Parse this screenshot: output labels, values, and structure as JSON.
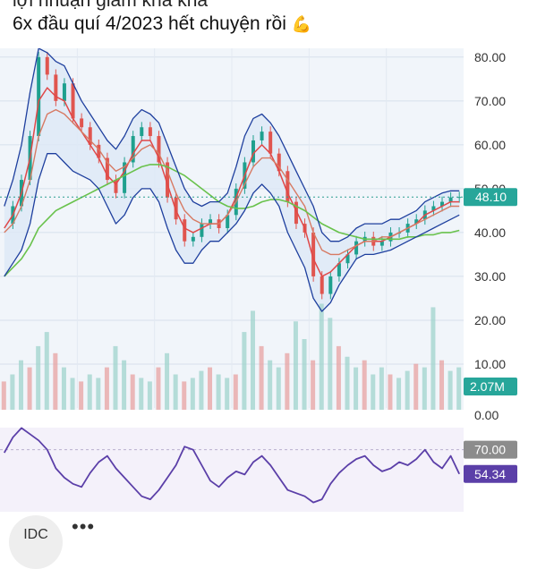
{
  "post": {
    "line1": "lợi nhuận giảm khá khá",
    "line2": "6x đầu quí 4/2023 hết chuyện rồi",
    "emoji": "💪"
  },
  "footer": {
    "author_initials": "IDC",
    "more_label": "•••"
  },
  "colors": {
    "bollinger": "#1e3f9e",
    "fast_ma": "#e04848",
    "mid_ma": "#d77a63",
    "slow_ma": "#69c24c",
    "band_fill": "#dde8f6",
    "price_badge": "#27a69a",
    "rsi_line": "#5b3fa8",
    "rsi_badge_70": "#8c8c8c"
  },
  "chart_data": [
    {
      "type": "line",
      "panel": "price",
      "y_ticks": [
        "80.00",
        "70.00",
        "60.00",
        "50.00",
        "40.00",
        "30.00",
        "20.00",
        "10.00"
      ],
      "ylim": [
        0,
        82
      ],
      "grid": true,
      "current_price": "48.10",
      "current_price_value": 48.1,
      "close_series": [
        42,
        46,
        52,
        62,
        80,
        76,
        70,
        74,
        66,
        64,
        60,
        57,
        52,
        49,
        56,
        62,
        64,
        62,
        56,
        48,
        43,
        38,
        39,
        42,
        43,
        41,
        44,
        50,
        56,
        61,
        63,
        58,
        54,
        47,
        42,
        40,
        30,
        26,
        30,
        33,
        35,
        38,
        39,
        37,
        38,
        40,
        40,
        42,
        43,
        45,
        46,
        47,
        48,
        48.1
      ],
      "series": [
        {
          "role": "fast_ma",
          "values": [
            41,
            44,
            49,
            57,
            70,
            73,
            71,
            70,
            66,
            63,
            60,
            57,
            53,
            51,
            54,
            58,
            61,
            61,
            57,
            51,
            45,
            41,
            40,
            41,
            42,
            42,
            44,
            48,
            53,
            58,
            60,
            58,
            54,
            49,
            45,
            41,
            34,
            30,
            31,
            33,
            35,
            37,
            38,
            38,
            38,
            39,
            40,
            41,
            42,
            44,
            45,
            46,
            47,
            47
          ]
        },
        {
          "role": "mid_ma",
          "values": [
            40,
            42,
            46,
            52,
            62,
            67,
            68,
            67,
            65,
            63,
            61,
            59,
            56,
            54,
            55,
            57,
            59,
            60,
            58,
            54,
            49,
            45,
            43,
            42,
            42,
            42,
            44,
            47,
            51,
            55,
            57,
            57,
            55,
            52,
            49,
            46,
            40,
            36,
            35,
            35,
            36,
            37,
            38,
            38,
            39,
            39,
            40,
            41,
            42,
            43,
            44,
            45,
            46,
            46
          ]
        },
        {
          "role": "slow_ma",
          "values": [
            30,
            32,
            34,
            37,
            41,
            43,
            45,
            46,
            47,
            48,
            49,
            50,
            51,
            52,
            53,
            54,
            55,
            55.5,
            55.5,
            55,
            54,
            53,
            51.5,
            50,
            48.5,
            47,
            46,
            45.5,
            45.5,
            46,
            47,
            47.5,
            47.5,
            47,
            46,
            45,
            43.5,
            42,
            41,
            40,
            39.5,
            39,
            38.5,
            38.5,
            38.5,
            38.5,
            38.5,
            39,
            39,
            39.5,
            39.5,
            40,
            40,
            40.5
          ]
        },
        {
          "role": "bollinger_upper",
          "values": [
            46,
            52,
            60,
            72,
            82,
            81,
            79,
            78,
            74,
            70,
            67,
            64,
            61,
            59,
            62,
            66,
            68,
            67,
            65,
            60,
            55,
            50,
            47,
            46,
            47,
            47,
            49,
            55,
            62,
            66,
            67,
            65,
            62,
            58,
            54,
            50,
            46,
            40,
            38,
            38,
            39,
            41,
            42,
            42,
            42,
            43,
            43,
            44,
            45,
            47,
            48,
            49,
            49.5,
            49.5
          ]
        },
        {
          "role": "bollinger_lower",
          "values": [
            30,
            33,
            36,
            42,
            52,
            58,
            58,
            56,
            54,
            53,
            52,
            50,
            46,
            42,
            44,
            48,
            50,
            50,
            47,
            41,
            36,
            33,
            33,
            36,
            38,
            38,
            40,
            42,
            45,
            49,
            51,
            49,
            46,
            40,
            36,
            32,
            25,
            22,
            24,
            28,
            31,
            34,
            35,
            35,
            35.5,
            36,
            37,
            38,
            39,
            40,
            41,
            42,
            43,
            44
          ]
        }
      ]
    },
    {
      "type": "bar",
      "panel": "volume",
      "current_volume": "2.07M",
      "zero_label": "0.00",
      "values": [
        8,
        10,
        14,
        12,
        18,
        22,
        16,
        12,
        9,
        8,
        10,
        9,
        12,
        18,
        14,
        10,
        9,
        8,
        12,
        16,
        10,
        8,
        9,
        11,
        12,
        10,
        9,
        10,
        22,
        28,
        18,
        14,
        12,
        16,
        25,
        20,
        14,
        30,
        26,
        18,
        15,
        12,
        14,
        10,
        12,
        10,
        9,
        11,
        13,
        12,
        29,
        14,
        11,
        12
      ]
    },
    {
      "type": "line",
      "panel": "rsi",
      "threshold_label": "70.00",
      "current_value": "54.34",
      "ylim": [
        30,
        90
      ],
      "values": [
        68,
        78,
        84,
        80,
        76,
        70,
        58,
        52,
        48,
        46,
        55,
        62,
        66,
        58,
        52,
        46,
        40,
        38,
        44,
        52,
        60,
        72,
        70,
        60,
        50,
        46,
        52,
        56,
        54,
        62,
        66,
        60,
        52,
        44,
        42,
        40,
        36,
        38,
        48,
        55,
        60,
        64,
        66,
        60,
        56,
        58,
        62,
        60,
        64,
        70,
        62,
        58,
        66,
        54.34
      ]
    }
  ]
}
